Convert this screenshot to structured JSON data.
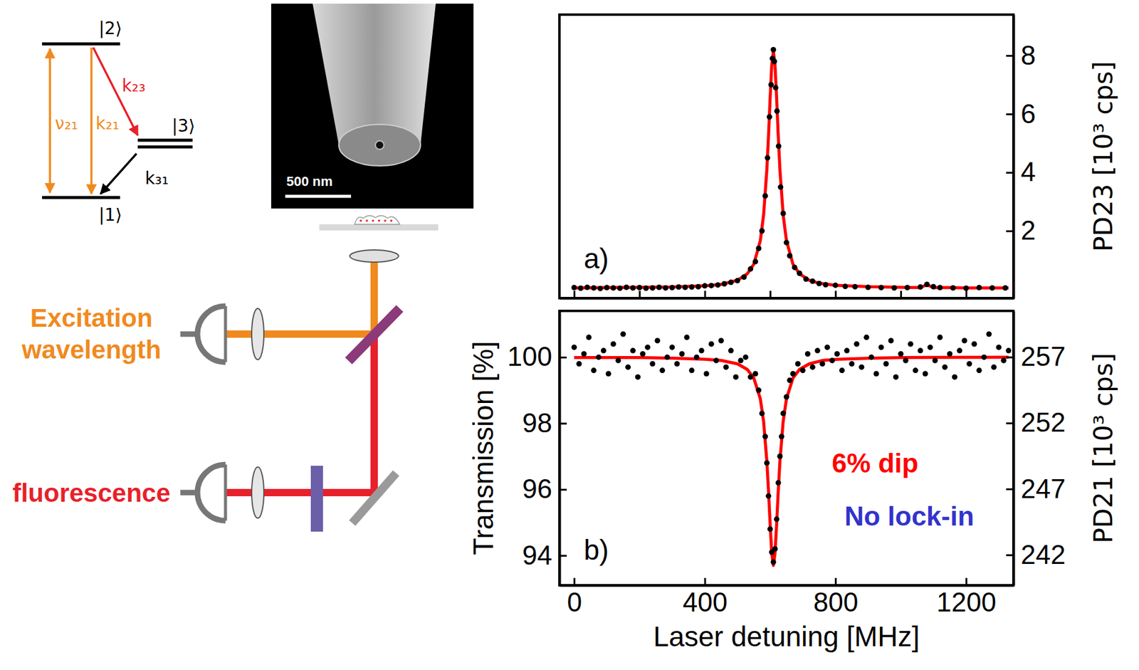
{
  "level_diagram": {
    "levels": [
      {
        "label": "|2⟩"
      },
      {
        "label": "|3⟩"
      },
      {
        "label": "|1⟩"
      }
    ],
    "transitions": [
      {
        "label": "ν₂₁",
        "color": "#f08a1e"
      },
      {
        "label": "k₂₁",
        "color": "#f08a1e"
      },
      {
        "label": "k₂₃",
        "color": "#e8202a"
      },
      {
        "label": "k₃₁",
        "color": "#000000"
      }
    ]
  },
  "micrograph": {
    "scale_bar": "500 nm"
  },
  "setup": {
    "excitation": {
      "text": "Excitation wavelength",
      "color": "#f08a1e"
    },
    "fluorescence": {
      "text": "fluorescence",
      "color": "#e8202a"
    }
  },
  "chart_data": [
    {
      "type": "scatter",
      "panel": "a)",
      "xlim": [
        -45,
        1345
      ],
      "xticks": [
        0,
        200,
        400,
        600,
        800,
        1000,
        1200
      ],
      "y2lim": [
        -0.3,
        9.4
      ],
      "y2ticks": [
        2,
        4,
        6,
        8
      ],
      "y2_label": "PD23 [10³ cps]",
      "tick_labels": "y",
      "series": [
        {
          "type": "scatter",
          "marker": "circle",
          "color": "#000000",
          "axis": "y2",
          "x": [
            0,
            20,
            40,
            60,
            80,
            100,
            120,
            140,
            160,
            180,
            200,
            220,
            240,
            260,
            280,
            300,
            320,
            340,
            360,
            380,
            400,
            420,
            440,
            460,
            480,
            500,
            520,
            540,
            555,
            565,
            575,
            585,
            592,
            598,
            603,
            607,
            610,
            613,
            617,
            621,
            626,
            632,
            640,
            650,
            660,
            675,
            690,
            710,
            730,
            750,
            770,
            800,
            830,
            860,
            900,
            940,
            980,
            1020,
            1060,
            1080,
            1100,
            1120,
            1160,
            1200,
            1240,
            1280,
            1320
          ],
          "values": [
            0.06,
            0.04,
            0.07,
            0.05,
            0.03,
            0.06,
            0.05,
            0.04,
            0.07,
            0.05,
            0.06,
            0.04,
            0.05,
            0.07,
            0.05,
            0.06,
            0.08,
            0.07,
            0.08,
            0.09,
            0.12,
            0.13,
            0.15,
            0.19,
            0.24,
            0.3,
            0.42,
            0.7,
            0.95,
            1.4,
            2.0,
            3.2,
            4.5,
            5.9,
            7.0,
            7.9,
            8.2,
            7.8,
            6.9,
            6.1,
            4.9,
            3.5,
            2.6,
            1.6,
            1.15,
            0.75,
            0.55,
            0.35,
            0.28,
            0.2,
            0.16,
            0.14,
            0.1,
            0.09,
            0.07,
            0.06,
            0.05,
            0.06,
            0.08,
            0.17,
            0.09,
            0.06,
            0.05,
            0.04,
            0.06,
            0.05,
            0.05
          ]
        },
        {
          "type": "line",
          "line_style": "solid",
          "color": "#ff0000",
          "axis": "y2",
          "x": [
            0,
            100,
            200,
            300,
            400,
            450,
            500,
            530,
            550,
            570,
            580,
            590,
            595,
            600,
            605,
            610,
            615,
            620,
            625,
            630,
            640,
            650,
            670,
            690,
            720,
            750,
            800,
            900,
            1000,
            1060,
            1080,
            1100,
            1150,
            1200,
            1330
          ],
          "values": [
            0.05,
            0.06,
            0.07,
            0.08,
            0.12,
            0.17,
            0.31,
            0.53,
            0.86,
            1.67,
            2.54,
            4.1,
            5.23,
            6.53,
            7.67,
            8.15,
            7.67,
            6.53,
            5.23,
            4.1,
            2.54,
            1.67,
            0.86,
            0.53,
            0.31,
            0.21,
            0.14,
            0.09,
            0.07,
            0.06,
            0.16,
            0.06,
            0.06,
            0.05,
            0.05
          ]
        }
      ]
    },
    {
      "type": "scatter",
      "panel": "b)",
      "xlim": [
        -45,
        1345
      ],
      "xticks": [
        0,
        400,
        800,
        1200
      ],
      "x_label": "Laser detuning [MHz]",
      "ylim": [
        93.1,
        101.4
      ],
      "yticks": [
        94,
        96,
        98,
        100
      ],
      "y_label": "Transmission [%]",
      "y2lim": [
        239.7,
        260.5
      ],
      "y2ticks": [
        242,
        247,
        252,
        257
      ],
      "y2_label": "PD21 [10³ cps]",
      "annotations": [
        {
          "text": "6% dip",
          "color": "#ff0000"
        },
        {
          "text": "No lock-in",
          "color": "#3333cc"
        }
      ],
      "series": [
        {
          "type": "scatter",
          "marker": "circle",
          "color": "#000000",
          "x": [
            0,
            15,
            30,
            45,
            60,
            75,
            90,
            105,
            120,
            135,
            150,
            165,
            180,
            195,
            210,
            225,
            240,
            255,
            270,
            285,
            300,
            315,
            330,
            345,
            360,
            375,
            390,
            405,
            420,
            435,
            450,
            465,
            480,
            495,
            510,
            525,
            540,
            555,
            565,
            575,
            585,
            590,
            595,
            600,
            605,
            610,
            615,
            620,
            625,
            630,
            635,
            640,
            650,
            660,
            670,
            685,
            700,
            715,
            730,
            745,
            760,
            775,
            790,
            805,
            820,
            835,
            850,
            865,
            880,
            895,
            910,
            925,
            940,
            955,
            970,
            985,
            1000,
            1015,
            1030,
            1045,
            1060,
            1075,
            1090,
            1105,
            1120,
            1135,
            1150,
            1165,
            1180,
            1195,
            1210,
            1225,
            1240,
            1255,
            1270,
            1285,
            1300,
            1315,
            1330
          ],
          "values": [
            100.3,
            99.8,
            100.1,
            100.6,
            99.6,
            100.0,
            100.2,
            99.5,
            100.4,
            99.9,
            100.7,
            99.7,
            100.2,
            99.4,
            100.1,
            100.3,
            99.8,
            100.5,
            99.6,
            100.0,
            100.3,
            99.8,
            100.1,
            100.6,
            99.6,
            100.0,
            100.2,
            99.5,
            100.4,
            99.9,
            100.5,
            99.7,
            100.2,
            99.4,
            99.9,
            100.0,
            99.4,
            99.5,
            99.0,
            98.3,
            97.6,
            96.8,
            95.8,
            94.8,
            94.1,
            93.8,
            94.2,
            95.1,
            96.2,
            97.0,
            97.6,
            98.3,
            98.8,
            99.3,
            99.5,
            99.8,
            99.6,
            100.1,
            99.7,
            100.2,
            99.8,
            100.3,
            99.9,
            100.1,
            99.6,
            100.2,
            99.8,
            100.4,
            99.7,
            100.6,
            100.0,
            99.5,
            100.3,
            99.8,
            100.5,
            99.4,
            100.1,
            99.9,
            100.4,
            99.6,
            100.2,
            99.5,
            100.3,
            99.9,
            100.6,
            99.7,
            100.1,
            99.4,
            100.2,
            100.5,
            99.8,
            100.4,
            99.6,
            100.0,
            100.7,
            99.7,
            100.3,
            99.9,
            100.2
          ]
        },
        {
          "type": "line",
          "line_style": "solid",
          "color": "#ff0000",
          "x": [
            0,
            200,
            300,
            400,
            450,
            500,
            530,
            550,
            570,
            580,
            590,
            595,
            600,
            605,
            610,
            615,
            620,
            625,
            630,
            640,
            650,
            670,
            690,
            720,
            760,
            810,
            910,
            1010,
            1330
          ],
          "values": [
            99.99,
            99.99,
            99.97,
            99.94,
            99.9,
            99.8,
            99.63,
            99.37,
            98.74,
            98.06,
            96.85,
            95.97,
            94.96,
            94.07,
            93.7,
            94.07,
            94.96,
            95.97,
            96.85,
            98.06,
            98.74,
            99.37,
            99.63,
            99.8,
            99.9,
            99.94,
            99.97,
            99.99,
            100
          ]
        }
      ]
    }
  ]
}
